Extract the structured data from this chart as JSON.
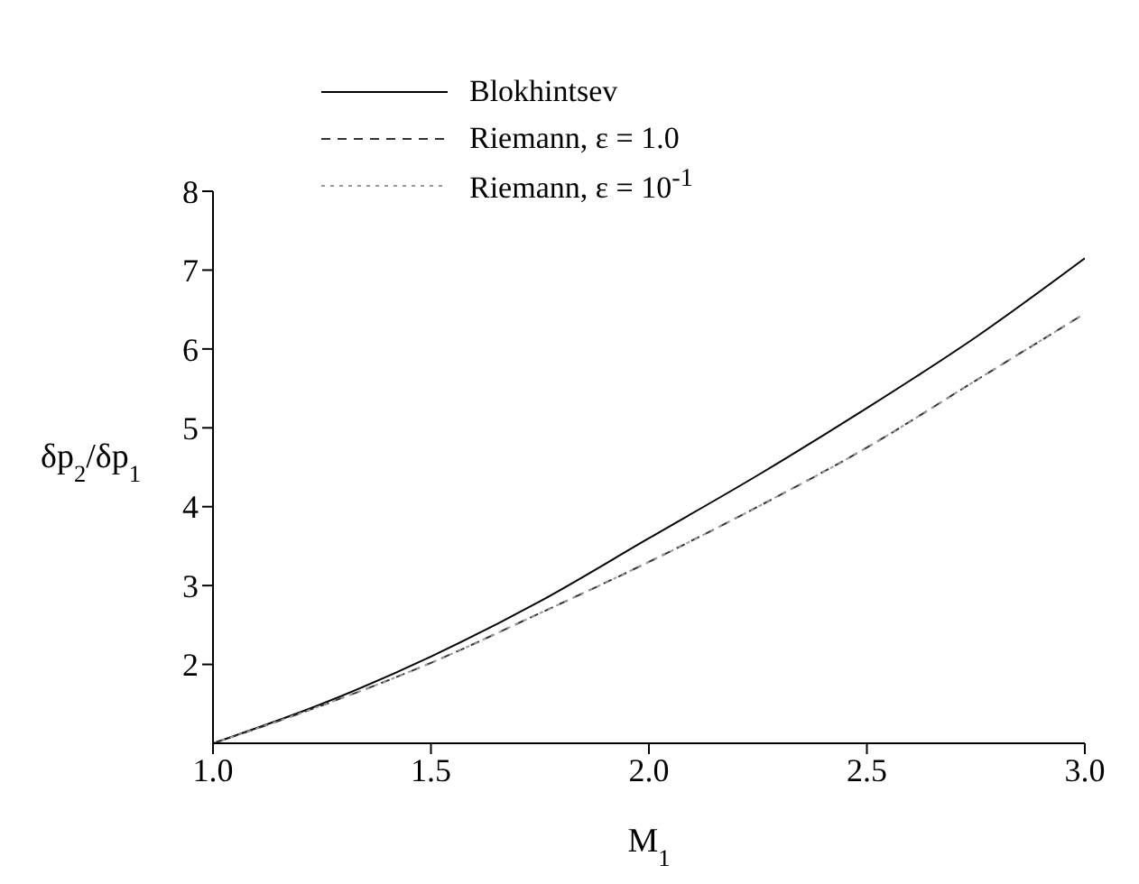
{
  "chart_data": {
    "type": "line",
    "xlabel": "M$_{1}$",
    "ylabel": "δp$_{2}$/δp$_{1}$",
    "x": [
      1.0,
      1.25,
      1.5,
      1.75,
      2.0,
      2.25,
      2.5,
      2.75,
      3.0
    ],
    "xlim": [
      1.0,
      3.0
    ],
    "xticks": [
      {
        "value": 1,
        "label": "1.0"
      },
      1.5,
      {
        "value": 2,
        "label": "2.0"
      },
      2.5,
      {
        "value": 3,
        "label": "3.0"
      }
    ],
    "ylim": [
      1,
      8
    ],
    "yticks": [
      2,
      3,
      4,
      5,
      6,
      7,
      8
    ],
    "series": [
      {
        "name": "Blokhintsev",
        "color": "#000000",
        "line_style": "solid",
        "values": [
          1.0,
          1.5,
          2.1,
          2.8,
          3.6,
          4.4,
          5.25,
          6.15,
          7.15
        ]
      },
      {
        "name": "Riemann, ε = 1.0",
        "color": "#333333",
        "line_style": "dashed",
        "values": [
          1.0,
          1.48,
          2.02,
          2.65,
          3.3,
          4.0,
          4.75,
          5.6,
          6.45
        ]
      },
      {
        "name": "Riemann, ε = 10$^{-1}$",
        "color": "#999999",
        "line_style": "dotted",
        "values": [
          1.0,
          1.48,
          2.02,
          2.65,
          3.3,
          4.0,
          4.75,
          5.6,
          6.45
        ]
      }
    ],
    "legend": "top left",
    "grid": false,
    "marker": "none"
  }
}
